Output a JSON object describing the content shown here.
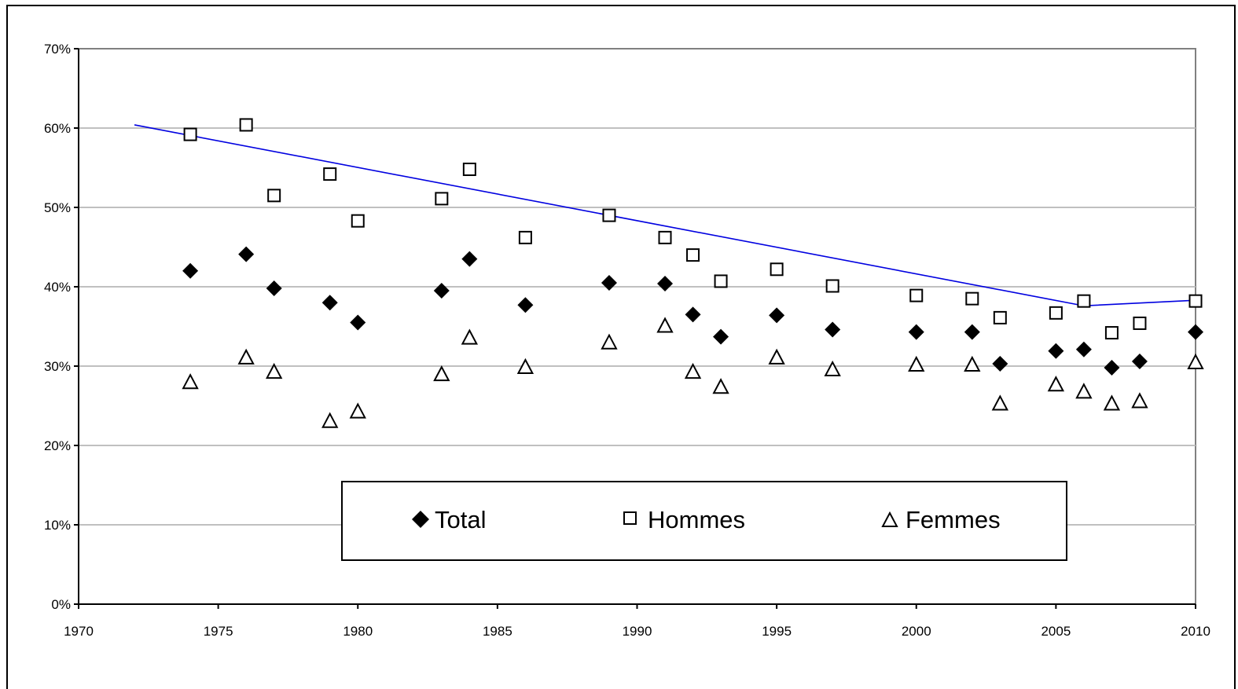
{
  "chart_data": {
    "type": "scatter",
    "title": "",
    "xlabel": "",
    "ylabel": "",
    "xlim": [
      1970,
      2010
    ],
    "ylim": [
      0,
      70
    ],
    "x_ticks": [
      "1970",
      "1975",
      "1980",
      "1985",
      "1990",
      "1995",
      "2000",
      "2005",
      "2010"
    ],
    "y_ticks": [
      "0%",
      "10%",
      "20%",
      "30%",
      "40%",
      "50%",
      "60%",
      "70%"
    ],
    "grid": "horizontal",
    "legend_placement": "bottom-center",
    "series": [
      {
        "name": "Total",
        "marker": "diamond-filled",
        "color": "#000000",
        "points": [
          [
            1974,
            42.0
          ],
          [
            1976,
            44.1
          ],
          [
            1977,
            39.8
          ],
          [
            1979,
            38.0
          ],
          [
            1980,
            35.5
          ],
          [
            1983,
            39.5
          ],
          [
            1984,
            43.5
          ],
          [
            1986,
            37.7
          ],
          [
            1989,
            40.5
          ],
          [
            1991,
            40.4
          ],
          [
            1992,
            36.5
          ],
          [
            1993,
            33.7
          ],
          [
            1995,
            36.4
          ],
          [
            1997,
            34.6
          ],
          [
            2000,
            34.3
          ],
          [
            2002,
            34.3
          ],
          [
            2003,
            30.3
          ],
          [
            2005,
            31.9
          ],
          [
            2006,
            32.1
          ],
          [
            2007,
            29.8
          ],
          [
            2008,
            30.6
          ],
          [
            2010,
            34.3
          ]
        ]
      },
      {
        "name": "Hommes",
        "marker": "square-open",
        "color": "#000000",
        "points": [
          [
            1974,
            59.2
          ],
          [
            1976,
            60.4
          ],
          [
            1977,
            51.5
          ],
          [
            1979,
            54.2
          ],
          [
            1980,
            48.3
          ],
          [
            1983,
            51.1
          ],
          [
            1984,
            54.8
          ],
          [
            1986,
            46.2
          ],
          [
            1989,
            49.0
          ],
          [
            1991,
            46.2
          ],
          [
            1992,
            44.0
          ],
          [
            1993,
            40.7
          ],
          [
            1995,
            42.2
          ],
          [
            1997,
            40.1
          ],
          [
            2000,
            38.9
          ],
          [
            2002,
            38.5
          ],
          [
            2003,
            36.1
          ],
          [
            2005,
            36.7
          ],
          [
            2006,
            38.2
          ],
          [
            2007,
            34.2
          ],
          [
            2008,
            35.4
          ],
          [
            2010,
            38.2
          ]
        ]
      },
      {
        "name": "Femmes",
        "marker": "triangle-open",
        "color": "#000000",
        "points": [
          [
            1974,
            28.0
          ],
          [
            1976,
            31.1
          ],
          [
            1977,
            29.3
          ],
          [
            1979,
            23.1
          ],
          [
            1980,
            24.3
          ],
          [
            1983,
            29.0
          ],
          [
            1984,
            33.6
          ],
          [
            1986,
            29.9
          ],
          [
            1989,
            33.0
          ],
          [
            1991,
            35.1
          ],
          [
            1992,
            29.3
          ],
          [
            1993,
            27.4
          ],
          [
            1995,
            31.1
          ],
          [
            1997,
            29.6
          ],
          [
            2000,
            30.2
          ],
          [
            2002,
            30.2
          ],
          [
            2003,
            25.3
          ],
          [
            2005,
            27.7
          ],
          [
            2006,
            26.8
          ],
          [
            2007,
            25.3
          ],
          [
            2008,
            25.6
          ],
          [
            2010,
            30.5
          ]
        ]
      }
    ],
    "trend_line": {
      "color": "#0000e0",
      "points": [
        [
          1972,
          60.4
        ],
        [
          2006,
          37.6
        ],
        [
          2010,
          38.3
        ]
      ]
    },
    "legend": {
      "total": "Total",
      "hommes": "Hommes",
      "femmes": "Femmes"
    }
  }
}
